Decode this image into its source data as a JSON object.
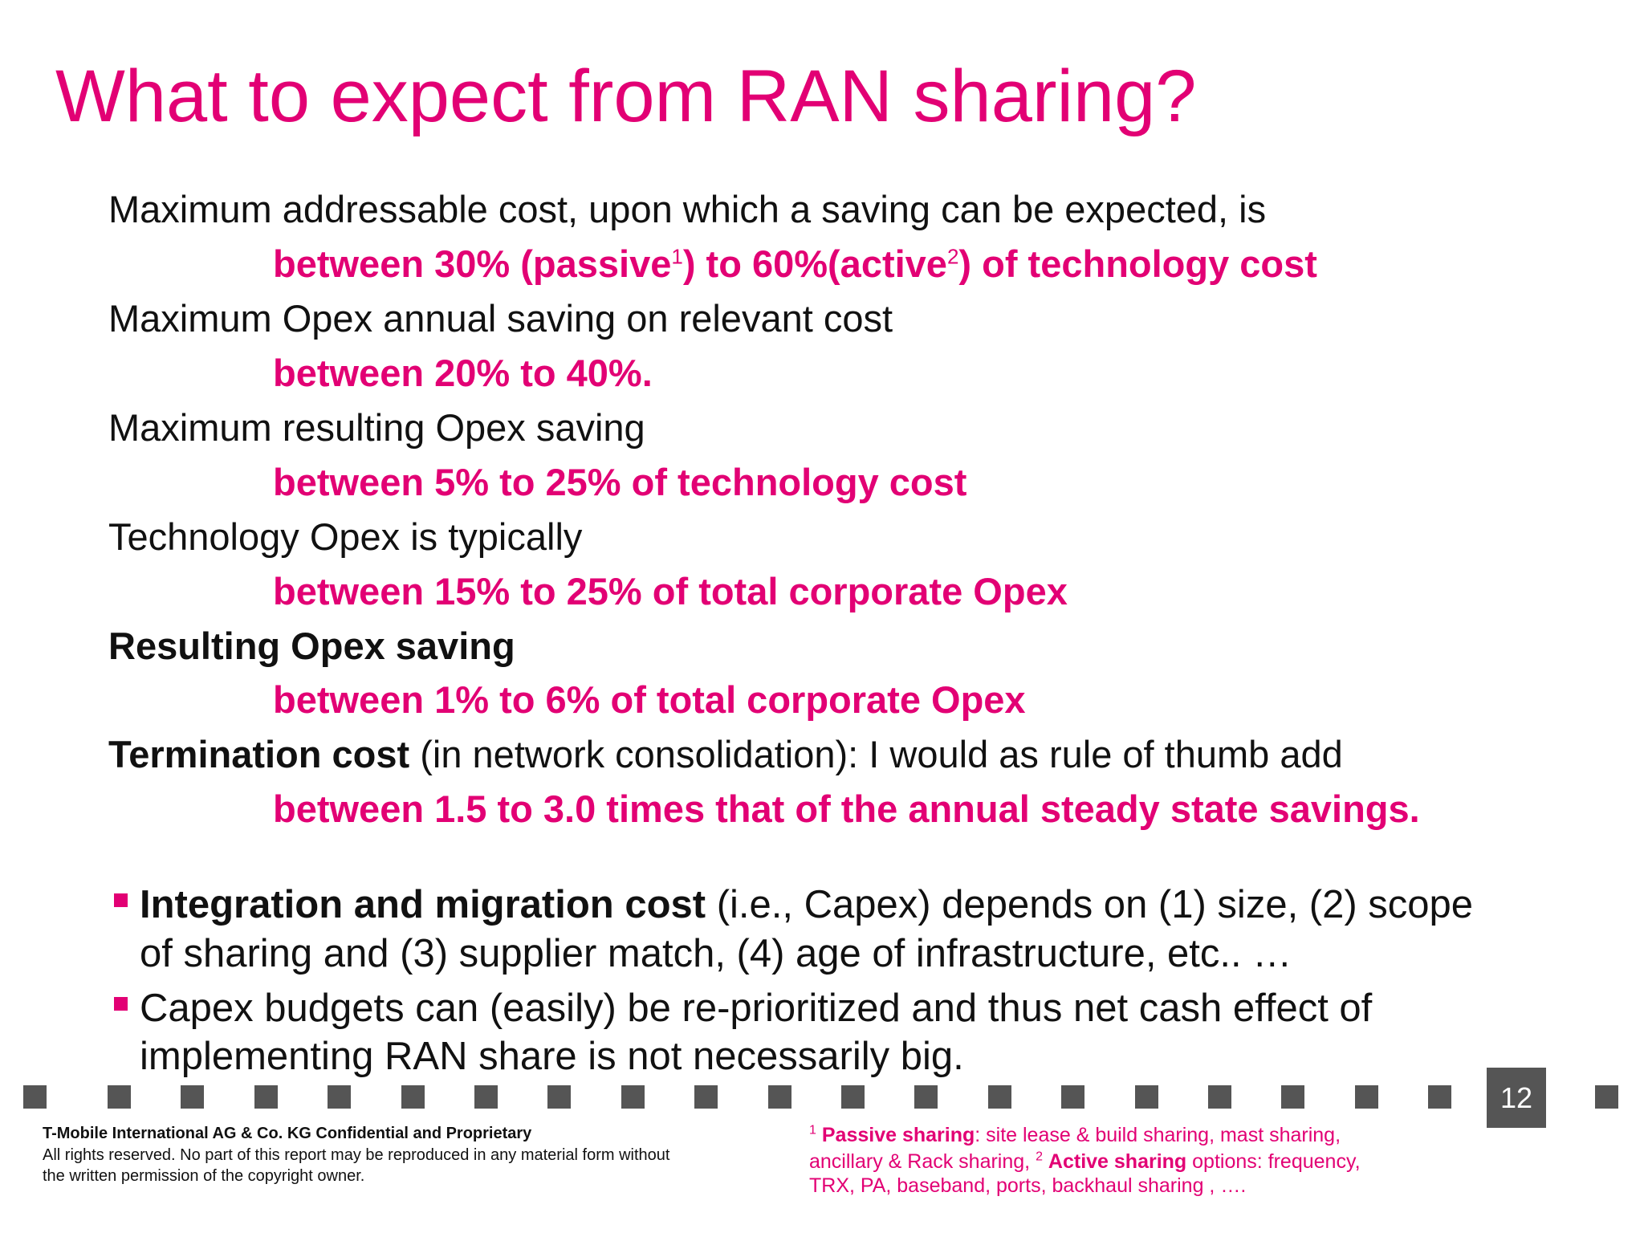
{
  "title": "What to expect from RAN sharing?",
  "statements": [
    {
      "lead": [
        "Maximum addressable cost, upon which a saving can be expected, is"
      ],
      "value": [
        "between 30% (passive",
        "1",
        ") to 60%(active",
        "2",
        ") of technology cost"
      ]
    },
    {
      "lead": [
        "Maximum Opex annual saving on relevant cost"
      ],
      "value": [
        "between 20% to 40%."
      ]
    },
    {
      "lead": [
        "Maximum resulting Opex saving"
      ],
      "value": [
        "between 5% to 25% of technology cost"
      ]
    },
    {
      "lead": [
        "Technology Opex is typically"
      ],
      "value": [
        "between 15% to 25% of total corporate Opex"
      ]
    },
    {
      "lead": [
        "Resulting Opex saving"
      ],
      "value": [
        "between 1% to 6% of total corporate Opex"
      ]
    },
    {
      "lead": [
        "Termination cost",
        " (in network consolidation): I would as rule of thumb add"
      ],
      "value": [
        "between 1.5 to 3.0 times that of the annual steady state savings."
      ]
    }
  ],
  "bullets": [
    [
      "Integration and migration cost",
      " (i.e., Capex) depends on (1) size, (2) scope",
      "of sharing and (3) supplier match, (4) age of infrastructure, etc.. …"
    ],
    [
      "Capex budgets can (easily) be re-prioritized and thus net cash effect of",
      "implementing RAN share is not necessarily big."
    ]
  ],
  "page_number": "12",
  "footer": [
    "T-Mobile International AG & Co. KG Confidential and Proprietary",
    "All rights reserved. No part of this report may be reproduced in any material form without",
    "the written permission of the copyright owner."
  ],
  "footnote": [
    "1",
    "Passive sharing",
    ": site lease & build sharing, mast sharing,",
    "ancillary & Rack sharing, ",
    "2",
    "Active sharing",
    " options: frequency,",
    "TRX,  PA, baseband, ports, backhaul sharing , …."
  ]
}
